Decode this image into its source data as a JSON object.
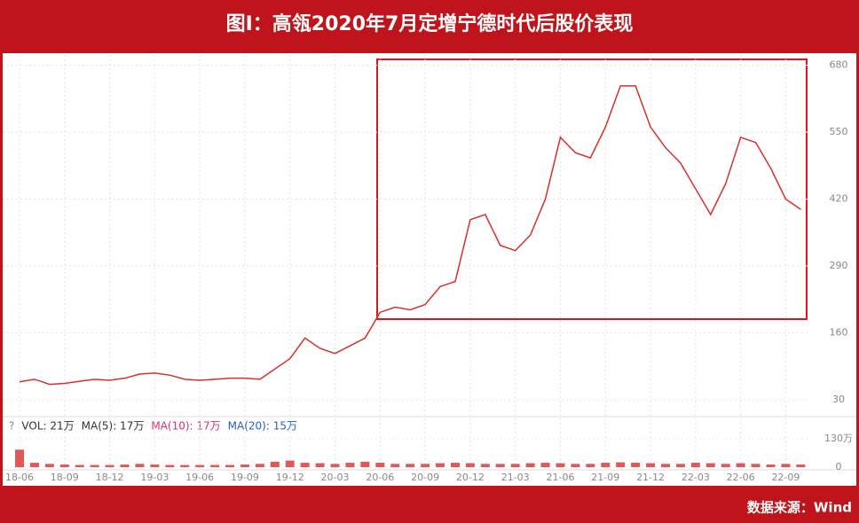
{
  "title": "图I：高瓴2020年7月定增宁德时代后股价表现",
  "source": "数据来源：Wind",
  "chart_data": [
    {
      "type": "line",
      "categories": [
        "18-06",
        null,
        null,
        "18-09",
        null,
        null,
        "18-12",
        null,
        null,
        "19-03",
        null,
        null,
        "19-06",
        null,
        null,
        "19-09",
        null,
        null,
        "19-12",
        null,
        null,
        "20-03",
        null,
        null,
        "20-06",
        null,
        null,
        "20-09",
        null,
        null,
        "20-12",
        null,
        null,
        "21-03",
        null,
        null,
        "21-06",
        null,
        null,
        "21-09",
        null,
        null,
        "21-12",
        null,
        null,
        "22-03",
        null,
        null,
        "22-06",
        null,
        null,
        "22-09",
        null
      ],
      "series": [
        {
          "color": "#d9302c",
          "values": [
            65,
            70,
            60,
            62,
            66,
            70,
            68,
            72,
            80,
            82,
            78,
            70,
            68,
            70,
            72,
            72,
            70,
            90,
            110,
            150,
            130,
            120,
            135,
            150,
            200,
            210,
            205,
            215,
            250,
            260,
            380,
            390,
            330,
            320,
            350,
            420,
            540,
            510,
            500,
            560,
            640,
            640,
            560,
            520,
            490,
            440,
            390,
            450,
            540,
            530,
            480,
            420,
            400
          ]
        }
      ],
      "ylim": [
        6,
        700
      ],
      "yticks": [
        30,
        160,
        290,
        420,
        550,
        680
      ],
      "grid": true
    },
    {
      "type": "bar",
      "annotations": [
        "?",
        "VOL: 21万",
        "MA(5): 17万",
        "MA(10): 17万",
        "MA(20): 15万"
      ],
      "series": [
        {
          "color": "#d9302c",
          "values": [
            80,
            20,
            15,
            12,
            10,
            10,
            10,
            12,
            15,
            12,
            10,
            10,
            10,
            10,
            10,
            12,
            15,
            25,
            30,
            20,
            18,
            15,
            20,
            25,
            20,
            15,
            15,
            15,
            18,
            20,
            18,
            15,
            15,
            15,
            18,
            20,
            18,
            15,
            15,
            20,
            22,
            20,
            18,
            15,
            15,
            20,
            18,
            15,
            18,
            15,
            12,
            15,
            12
          ]
        }
      ],
      "ylim": [
        0,
        150
      ],
      "yticks": [
        0,
        {
          "value": 130,
          "label": "130万"
        }
      ]
    }
  ]
}
